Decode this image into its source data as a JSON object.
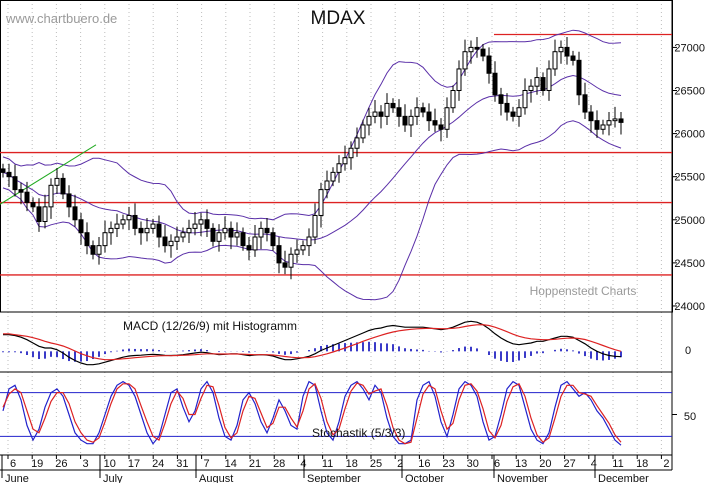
{
  "watermark": "www.chartbuero.de",
  "credit": "Hoppenstedt Charts",
  "colors": {
    "resistance": "#dd2222",
    "bands": "#5a2fa8",
    "candle": "#000000",
    "macd_signal": "#dd2222",
    "histogram": "#3a3ac8",
    "stoch_line": "#2222cc",
    "trend": "#22aa22"
  },
  "chart_data": [
    {
      "type": "candlestick",
      "title": "MDAX",
      "yticks": [
        24000,
        24500,
        25000,
        25500,
        26000,
        26500,
        27000
      ],
      "ylim": [
        23930,
        27550
      ],
      "horizontal_lines": [
        27150,
        25780,
        25200,
        24360
      ],
      "x_tick_labels": [
        "6",
        "19",
        "26",
        "3",
        "10",
        "17",
        "24",
        "31",
        "7",
        "14",
        "21",
        "28",
        "4",
        "11",
        "18",
        "25",
        "2",
        "16",
        "23",
        "30",
        "6",
        "13",
        "20",
        "27",
        "4",
        "11",
        "18",
        "2"
      ],
      "month_labels": [
        "June",
        "July",
        "August",
        "September",
        "October",
        "November",
        "December"
      ],
      "ohlc_x": [
        3,
        9,
        15,
        21,
        27,
        33,
        39,
        45,
        51,
        57,
        63,
        69,
        75,
        81,
        87,
        93,
        99,
        105,
        111,
        117,
        123,
        129,
        135,
        141,
        147,
        153,
        159,
        165,
        171,
        177,
        183,
        189,
        195,
        201,
        207,
        213,
        219,
        225,
        231,
        237,
        243,
        249,
        255,
        261,
        267,
        273,
        279,
        285,
        291,
        297,
        303,
        309,
        315,
        321,
        327,
        333,
        339,
        345,
        351,
        357,
        363,
        369,
        375,
        381,
        387,
        393,
        399,
        405,
        411,
        417,
        423,
        429,
        435,
        441,
        447,
        453,
        459,
        465,
        471,
        477,
        483,
        489,
        495,
        501,
        507,
        513,
        519,
        525,
        531,
        537,
        543,
        549,
        555,
        561,
        567,
        573,
        579,
        585,
        591,
        597,
        603,
        609,
        615,
        621
      ],
      "close": [
        25550,
        25500,
        25350,
        25320,
        25200,
        25150,
        24980,
        25150,
        25400,
        25480,
        25300,
        25150,
        25000,
        24850,
        24700,
        24600,
        24700,
        24850,
        24900,
        24950,
        25000,
        25050,
        24900,
        24850,
        24900,
        24950,
        24800,
        24700,
        24750,
        24800,
        24850,
        24900,
        24950,
        25000,
        24900,
        24750,
        24850,
        24900,
        24800,
        24850,
        24700,
        24650,
        24800,
        24900,
        24850,
        24700,
        24500,
        24450,
        24600,
        24650,
        24700,
        24800,
        25050,
        25350,
        25450,
        25550,
        25650,
        25720,
        25830,
        25950,
        26100,
        26200,
        26250,
        26200,
        26350,
        26300,
        26200,
        26100,
        26200,
        26300,
        26250,
        26150,
        26100,
        26050,
        26300,
        26500,
        26750,
        26950,
        27000,
        26980,
        26900,
        26700,
        26450,
        26350,
        26250,
        26200,
        26300,
        26500,
        26550,
        26650,
        26500,
        26750,
        26950,
        27000,
        26900,
        26850,
        26450,
        26250,
        26150,
        26050,
        26100,
        26150,
        26170,
        26130
      ],
      "macd": [
        1.0,
        1.0,
        0.95,
        0.85,
        0.7,
        0.5,
        0.3,
        0.2,
        0.2,
        0.1,
        -0.1,
        -0.35,
        -0.55,
        -0.7,
        -0.8,
        -0.8,
        -0.75,
        -0.65,
        -0.55,
        -0.45,
        -0.35,
        -0.28,
        -0.25,
        -0.23,
        -0.2,
        -0.18,
        -0.2,
        -0.24,
        -0.25,
        -0.23,
        -0.2,
        -0.15,
        -0.1,
        -0.05,
        -0.08,
        -0.15,
        -0.2,
        -0.18,
        -0.15,
        -0.15,
        -0.2,
        -0.25,
        -0.22,
        -0.2,
        -0.22,
        -0.28,
        -0.4,
        -0.5,
        -0.5,
        -0.45,
        -0.38,
        -0.3,
        -0.15,
        0.05,
        0.2,
        0.35,
        0.5,
        0.65,
        0.8,
        0.95,
        1.1,
        1.25,
        1.35,
        1.4,
        1.5,
        1.55,
        1.5,
        1.45,
        1.45,
        1.45,
        1.45,
        1.4,
        1.35,
        1.3,
        1.35,
        1.45,
        1.6,
        1.75,
        1.8,
        1.75,
        1.6,
        1.35,
        1.05,
        0.8,
        0.6,
        0.45,
        0.4,
        0.45,
        0.5,
        0.6,
        0.6,
        0.7,
        0.8,
        0.9,
        0.9,
        0.85,
        0.65,
        0.45,
        0.2,
        0.0,
        -0.15,
        -0.25,
        -0.3,
        -0.32
      ],
      "macd_signal": [
        1.05,
        1.05,
        1.0,
        0.95,
        0.9,
        0.82,
        0.72,
        0.6,
        0.5,
        0.42,
        0.32,
        0.18,
        0.02,
        -0.14,
        -0.27,
        -0.38,
        -0.45,
        -0.5,
        -0.5,
        -0.48,
        -0.45,
        -0.42,
        -0.38,
        -0.35,
        -0.32,
        -0.29,
        -0.27,
        -0.26,
        -0.26,
        -0.25,
        -0.24,
        -0.22,
        -0.2,
        -0.17,
        -0.15,
        -0.15,
        -0.16,
        -0.16,
        -0.16,
        -0.16,
        -0.17,
        -0.19,
        -0.2,
        -0.2,
        -0.2,
        -0.22,
        -0.26,
        -0.31,
        -0.35,
        -0.38,
        -0.38,
        -0.37,
        -0.32,
        -0.24,
        -0.15,
        -0.04,
        0.08,
        0.2,
        0.33,
        0.46,
        0.6,
        0.73,
        0.85,
        0.96,
        1.07,
        1.16,
        1.23,
        1.28,
        1.32,
        1.35,
        1.37,
        1.38,
        1.37,
        1.36,
        1.36,
        1.38,
        1.42,
        1.49,
        1.55,
        1.59,
        1.6,
        1.55,
        1.45,
        1.32,
        1.18,
        1.03,
        0.9,
        0.81,
        0.75,
        0.72,
        0.7,
        0.7,
        0.72,
        0.76,
        0.79,
        0.8,
        0.77,
        0.71,
        0.6,
        0.48,
        0.35,
        0.22,
        0.1,
        0.0
      ],
      "stoch_k": [
        55,
        85,
        90,
        70,
        35,
        15,
        30,
        60,
        80,
        85,
        75,
        50,
        25,
        15,
        10,
        10,
        25,
        50,
        75,
        90,
        95,
        90,
        75,
        50,
        25,
        10,
        20,
        50,
        80,
        85,
        60,
        40,
        55,
        85,
        95,
        80,
        45,
        20,
        15,
        35,
        70,
        80,
        65,
        40,
        25,
        45,
        70,
        55,
        35,
        30,
        75,
        95,
        90,
        55,
        25,
        15,
        40,
        75,
        90,
        95,
        85,
        70,
        90,
        80,
        45,
        20,
        10,
        10,
        15,
        70,
        90,
        95,
        75,
        40,
        20,
        50,
        85,
        95,
        90,
        75,
        40,
        15,
        20,
        50,
        85,
        95,
        90,
        60,
        30,
        15,
        10,
        25,
        60,
        90,
        95,
        85,
        75,
        80,
        70,
        55,
        45,
        30,
        15,
        8
      ],
      "stoch_d": [
        60,
        78,
        85,
        80,
        55,
        30,
        25,
        45,
        68,
        80,
        80,
        65,
        40,
        25,
        15,
        12,
        18,
        40,
        65,
        85,
        92,
        92,
        85,
        62,
        40,
        20,
        15,
        38,
        65,
        82,
        72,
        50,
        50,
        72,
        90,
        88,
        62,
        32,
        18,
        25,
        55,
        75,
        72,
        52,
        32,
        38,
        60,
        60,
        45,
        33,
        55,
        85,
        92,
        72,
        40,
        22,
        30,
        58,
        82,
        93,
        90,
        78,
        82,
        85,
        62,
        32,
        15,
        10,
        12,
        45,
        78,
        90,
        85,
        55,
        30,
        38,
        70,
        90,
        92,
        82,
        58,
        28,
        18,
        35,
        68,
        88,
        92,
        75,
        45,
        22,
        12,
        18,
        45,
        75,
        90,
        90,
        80,
        78,
        75,
        62,
        50,
        38,
        22,
        12
      ],
      "stoch_levels": [
        80,
        20
      ],
      "stoch_ytick": 50
    }
  ],
  "panels": {
    "macd_label": "MACD (12/26/9) mit Histogramm",
    "macd_zero_label": "0",
    "stoch_label": "Stochastik (5/3/3)",
    "stoch_ytick_label": "50"
  }
}
